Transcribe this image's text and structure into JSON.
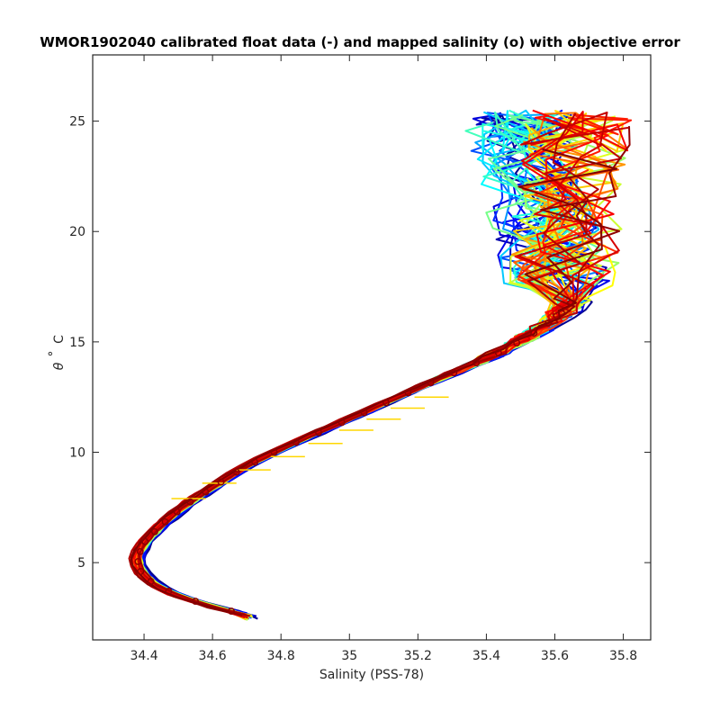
{
  "chart_data": {
    "type": "line",
    "title": "WMOR1902040 calibrated float data (-) and mapped salinity (o) with objective error",
    "xlabel": "Salinity (PSS-78)",
    "ylabel_symbol": "θ",
    "ylabel_degree": "°",
    "ylabel_unit": "C",
    "xlim": [
      34.25,
      35.88
    ],
    "ylim": [
      1.5,
      28
    ],
    "xticks": [
      34.4,
      34.6,
      34.8,
      35,
      35.2,
      35.4,
      35.6,
      35.8
    ],
    "xtick_labels": [
      "34.4",
      "34.6",
      "34.8",
      "35",
      "35.2",
      "35.4",
      "35.6",
      "35.8"
    ],
    "yticks": [
      5,
      10,
      15,
      20,
      25
    ],
    "ytick_labels": [
      "5",
      "10",
      "15",
      "20",
      "25"
    ],
    "grid": false,
    "colormap": [
      "#00008f",
      "#0000ff",
      "#0080ff",
      "#00ffff",
      "#80ff80",
      "#ffff00",
      "#ff8000",
      "#ff0000",
      "#800000"
    ],
    "mean_profile": {
      "salinity": [
        34.71,
        34.6,
        34.5,
        34.43,
        34.39,
        34.38,
        34.4,
        34.45,
        34.52,
        34.6,
        34.68,
        34.78,
        34.88,
        35.0,
        35.1,
        35.2,
        35.32,
        35.45,
        35.55,
        35.62,
        35.66
      ],
      "theta": [
        2.6,
        3.0,
        3.5,
        4.0,
        4.6,
        5.2,
        5.9,
        6.7,
        7.6,
        8.4,
        9.2,
        10.0,
        10.7,
        11.5,
        12.2,
        12.9,
        13.7,
        14.6,
        15.5,
        16.3,
        17.0
      ]
    },
    "error_bars": {
      "theta": [
        7.9,
        8.6,
        9.2,
        9.8,
        10.4,
        11.0,
        11.5,
        12.0,
        12.5
      ],
      "salinity": [
        34.53,
        34.62,
        34.72,
        34.82,
        34.93,
        35.02,
        35.1,
        35.17,
        35.24
      ],
      "half_width": [
        0.05,
        0.05,
        0.05,
        0.05,
        0.05,
        0.05,
        0.05,
        0.05,
        0.05
      ]
    },
    "n_profiles": 60
  }
}
